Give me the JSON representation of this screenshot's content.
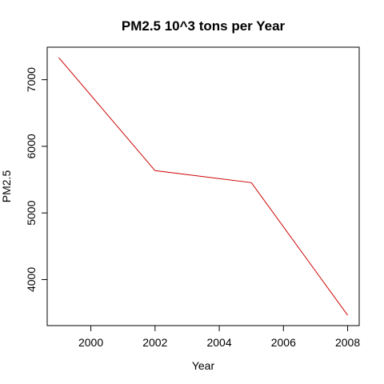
{
  "chart_data": {
    "type": "line",
    "title": "PM2.5 10^3 tons per Year",
    "xlabel": "Year",
    "ylabel": "PM2.5",
    "x": [
      1999,
      2002,
      2005,
      2008
    ],
    "series": [
      {
        "values": [
          7333,
          5635,
          5455,
          3464
        ],
        "color": "#cc0000"
      }
    ],
    "xlim": [
      1998.64,
      2008.36
    ],
    "ylim": [
      3309,
      7488
    ],
    "xticks": [
      2000,
      2002,
      2004,
      2006,
      2008
    ],
    "yticks": [
      4000,
      5000,
      6000,
      7000
    ],
    "xtick_labels": [
      "2000",
      "2002",
      "2004",
      "2006",
      "2008"
    ],
    "ytick_labels": [
      "4000",
      "5000",
      "6000",
      "7000"
    ],
    "grid": false,
    "legend": "none"
  }
}
